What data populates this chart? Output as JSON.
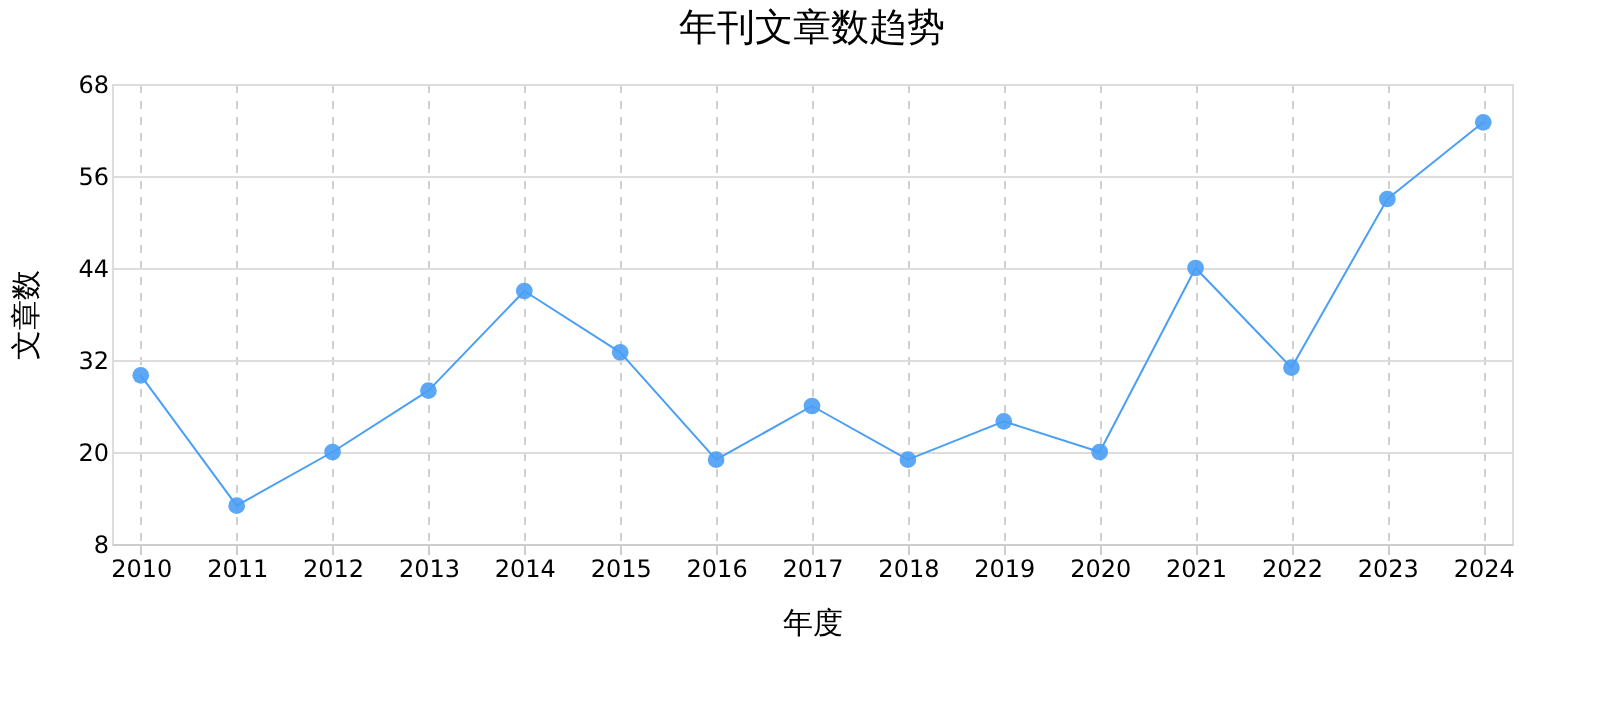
{
  "chart_data": {
    "type": "line",
    "title": "年刊文章数趋势",
    "xlabel": "年度",
    "ylabel": "文章数",
    "categories": [
      "2010",
      "2011",
      "2012",
      "2013",
      "2014",
      "2015",
      "2016",
      "2017",
      "2018",
      "2019",
      "2020",
      "2021",
      "2022",
      "2023",
      "2024"
    ],
    "series": [
      {
        "color": "#4a9ff5",
        "values": [
          30,
          13,
          20,
          28,
          41,
          33,
          19,
          26,
          19,
          24,
          20,
          44,
          31,
          53,
          63
        ]
      }
    ],
    "ylim": [
      8,
      68
    ],
    "yticks": [
      8,
      20,
      32,
      44,
      56,
      68
    ],
    "grid": true,
    "marker": "circle",
    "line_style": "solid"
  }
}
